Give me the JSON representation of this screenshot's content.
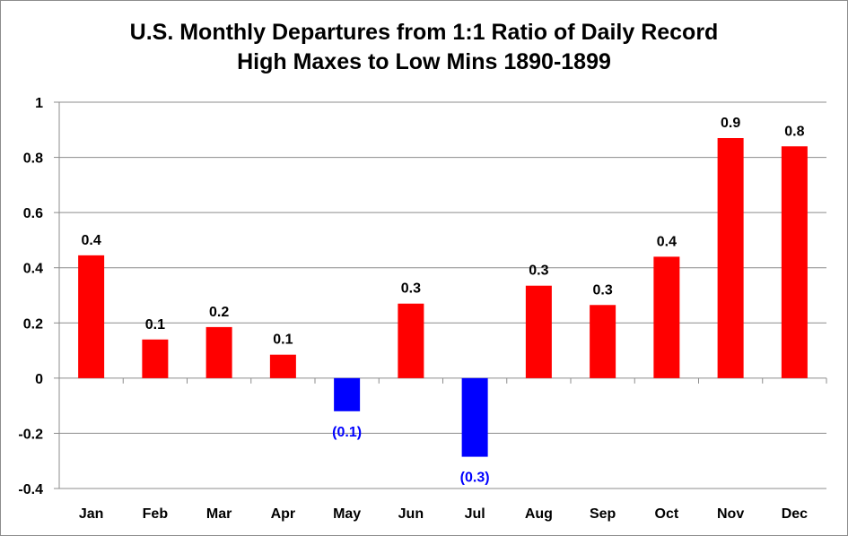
{
  "chart_data": {
    "type": "bar",
    "title_lines": [
      "U.S. Monthly Departures from 1:1 Ratio of Daily Record",
      "High Maxes to Low Mins 1890-1899"
    ],
    "categories": [
      "Jan",
      "Feb",
      "Mar",
      "Apr",
      "May",
      "Jun",
      "Jul",
      "Aug",
      "Sep",
      "Oct",
      "Nov",
      "Dec"
    ],
    "values": [
      0.445,
      0.14,
      0.185,
      0.085,
      -0.12,
      0.27,
      -0.285,
      0.335,
      0.265,
      0.44,
      0.87,
      0.84
    ],
    "data_labels": [
      "0.4",
      "0.1",
      "0.2",
      "0.1",
      "(0.1)",
      "0.3",
      "(0.3)",
      "0.3",
      "0.3",
      "0.4",
      "0.9",
      "0.8"
    ],
    "ylim": [
      -0.4,
      1
    ],
    "yticks": [
      -0.4,
      -0.2,
      0,
      0.2,
      0.4,
      0.6,
      0.8,
      1
    ],
    "ytick_labels": [
      "-0.4",
      "-0.2",
      "0",
      "0.2",
      "0.4",
      "0.6",
      "0.8",
      "1"
    ],
    "xlabel": "",
    "ylabel": "",
    "grid": true,
    "legend": "none",
    "colors": {
      "positive": "#ff0000",
      "negative": "#0000ff",
      "positive_label": "#000000",
      "negative_label": "#0000ff",
      "grid": "#8c8c8c",
      "axis": "#8c8c8c"
    }
  }
}
